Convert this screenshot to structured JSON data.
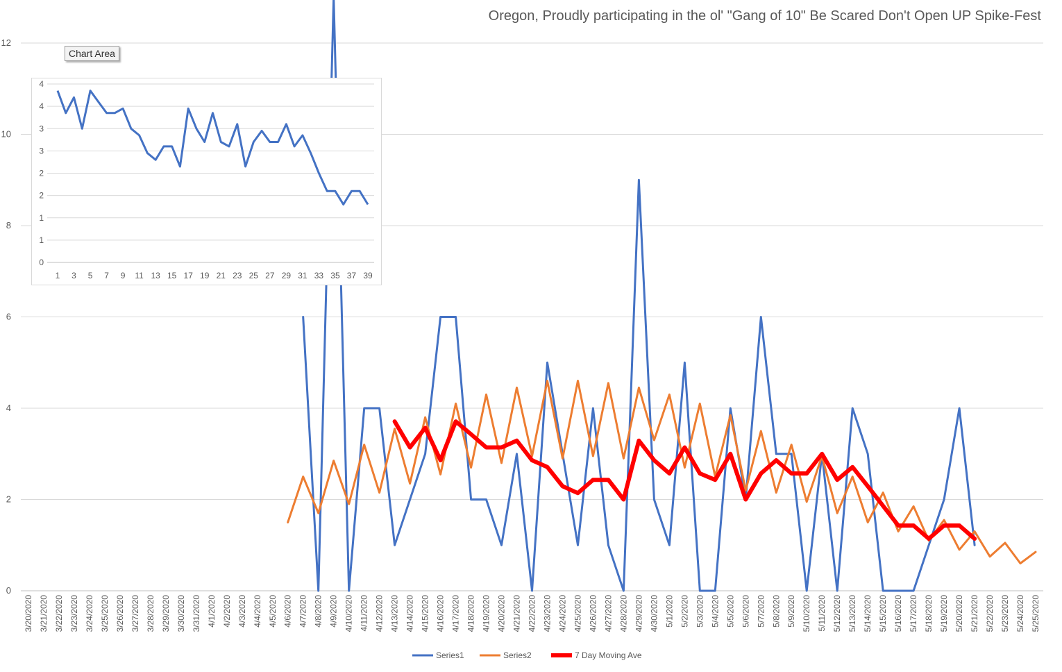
{
  "title": "Oregon, Proudly participating in the ol' \"Gang of 10\" Be Scared Don't Open UP Spike-Fest",
  "tooltip": "Chart Area",
  "colors": {
    "series1": "#4472c4",
    "series2": "#ed7d31",
    "moving_ave": "#ff0000",
    "grid": "#d9d9d9",
    "text": "#595959"
  },
  "chart_data": [
    {
      "type": "line",
      "title": "Oregon, Proudly participating in the ol' \"Gang of 10\" Be Scared Don't Open UP Spike-Fest",
      "ylim": [
        0,
        12
      ],
      "yticks": [
        "0",
        "2",
        "4",
        "6",
        "8",
        "10",
        "12"
      ],
      "grid": true,
      "legend_position": "bottom",
      "categories": [
        "3/20/2020",
        "3/21/2020",
        "3/22/2020",
        "3/23/2020",
        "3/24/2020",
        "3/25/2020",
        "3/26/2020",
        "3/27/2020",
        "3/28/2020",
        "3/29/2020",
        "3/30/2020",
        "3/31/2020",
        "4/1/2020",
        "4/2/2020",
        "4/3/2020",
        "4/4/2020",
        "4/5/2020",
        "4/6/2020",
        "4/7/2020",
        "4/8/2020",
        "4/9/2020",
        "4/10/2020",
        "4/11/2020",
        "4/12/2020",
        "4/13/2020",
        "4/14/2020",
        "4/15/2020",
        "4/16/2020",
        "4/17/2020",
        "4/18/2020",
        "4/19/2020",
        "4/20/2020",
        "4/21/2020",
        "4/22/2020",
        "4/23/2020",
        "4/24/2020",
        "4/25/2020",
        "4/26/2020",
        "4/27/2020",
        "4/28/2020",
        "4/29/2020",
        "4/30/2020",
        "5/1/2020",
        "5/2/2020",
        "5/3/2020",
        "5/4/2020",
        "5/5/2020",
        "5/6/2020",
        "5/7/2020",
        "5/8/2020",
        "5/9/2020",
        "5/10/2020",
        "5/11/2020",
        "5/12/2020",
        "5/13/2020",
        "5/14/2020",
        "5/15/2020",
        "5/16/2020",
        "5/17/2020",
        "5/18/2020",
        "5/19/2020",
        "5/20/2020",
        "5/21/2020",
        "5/22/2020",
        "5/23/2020",
        "5/24/2020",
        "5/25/2020"
      ],
      "series": [
        {
          "name": "Series1",
          "values": [
            null,
            null,
            null,
            null,
            null,
            null,
            null,
            null,
            null,
            null,
            null,
            null,
            null,
            null,
            null,
            null,
            null,
            null,
            6,
            0,
            13,
            0,
            4,
            4,
            1,
            2,
            3,
            6,
            6,
            2,
            2,
            1,
            3,
            0,
            5,
            3,
            1,
            4,
            1,
            0,
            9,
            2,
            1,
            5,
            0,
            0,
            4,
            2,
            6,
            3,
            3,
            0,
            3,
            0,
            4,
            3,
            0,
            0,
            0,
            1,
            2,
            4,
            1,
            null,
            null,
            null,
            null
          ]
        },
        {
          "name": "Series2",
          "values": [
            null,
            null,
            null,
            null,
            null,
            null,
            null,
            null,
            null,
            null,
            null,
            null,
            null,
            null,
            null,
            null,
            null,
            1.5,
            2.5,
            1.7,
            2.85,
            1.9,
            3.2,
            2.15,
            3.55,
            2.35,
            3.8,
            2.55,
            4.1,
            2.7,
            4.3,
            2.8,
            4.45,
            2.95,
            4.6,
            2.9,
            4.6,
            2.95,
            4.55,
            2.9,
            4.45,
            3.3,
            4.3,
            2.7,
            4.1,
            2.5,
            3.85,
            2.2,
            3.5,
            2.15,
            3.2,
            1.95,
            2.95,
            1.7,
            2.5,
            1.5,
            2.15,
            1.3,
            1.85,
            1.1,
            1.55,
            0.9,
            1.3,
            0.75,
            1.05,
            0.6,
            0.85
          ]
        },
        {
          "name": "7 Day Moving Ave",
          "values": [
            null,
            null,
            null,
            null,
            null,
            null,
            null,
            null,
            null,
            null,
            null,
            null,
            null,
            null,
            null,
            null,
            null,
            null,
            null,
            null,
            null,
            null,
            null,
            null,
            3.71,
            3.14,
            3.57,
            2.86,
            3.71,
            3.43,
            3.14,
            3.14,
            3.29,
            2.86,
            2.71,
            2.29,
            2.14,
            2.43,
            2.43,
            2.0,
            3.29,
            2.86,
            2.57,
            3.14,
            2.57,
            2.43,
            3.0,
            2.0,
            2.57,
            2.86,
            2.57,
            2.57,
            3.0,
            2.43,
            2.71,
            2.29,
            1.86,
            1.43,
            1.43,
            1.14,
            1.43,
            1.43,
            1.14,
            null,
            null,
            null,
            null
          ]
        }
      ]
    },
    {
      "type": "line",
      "ylim": [
        0,
        4
      ],
      "yticks": [
        "0",
        "1",
        "1",
        "2",
        "2",
        "3",
        "3",
        "4",
        "4"
      ],
      "xticks": [
        "1",
        "3",
        "5",
        "7",
        "9",
        "11",
        "13",
        "15",
        "17",
        "19",
        "21",
        "23",
        "25",
        "27",
        "29",
        "31",
        "33",
        "35",
        "37",
        "39"
      ],
      "grid": true,
      "series": [
        {
          "values": [
            3.85,
            3.35,
            3.7,
            3.0,
            3.85,
            3.6,
            3.35,
            3.35,
            3.45,
            3.0,
            2.85,
            2.45,
            2.3,
            2.6,
            2.6,
            2.15,
            3.45,
            3.0,
            2.7,
            3.35,
            2.7,
            2.6,
            3.1,
            2.15,
            2.7,
            2.95,
            2.7,
            2.7,
            3.1,
            2.6,
            2.85,
            2.45,
            2.0,
            1.6,
            1.6,
            1.3,
            1.6,
            1.6,
            1.3
          ]
        }
      ]
    }
  ]
}
